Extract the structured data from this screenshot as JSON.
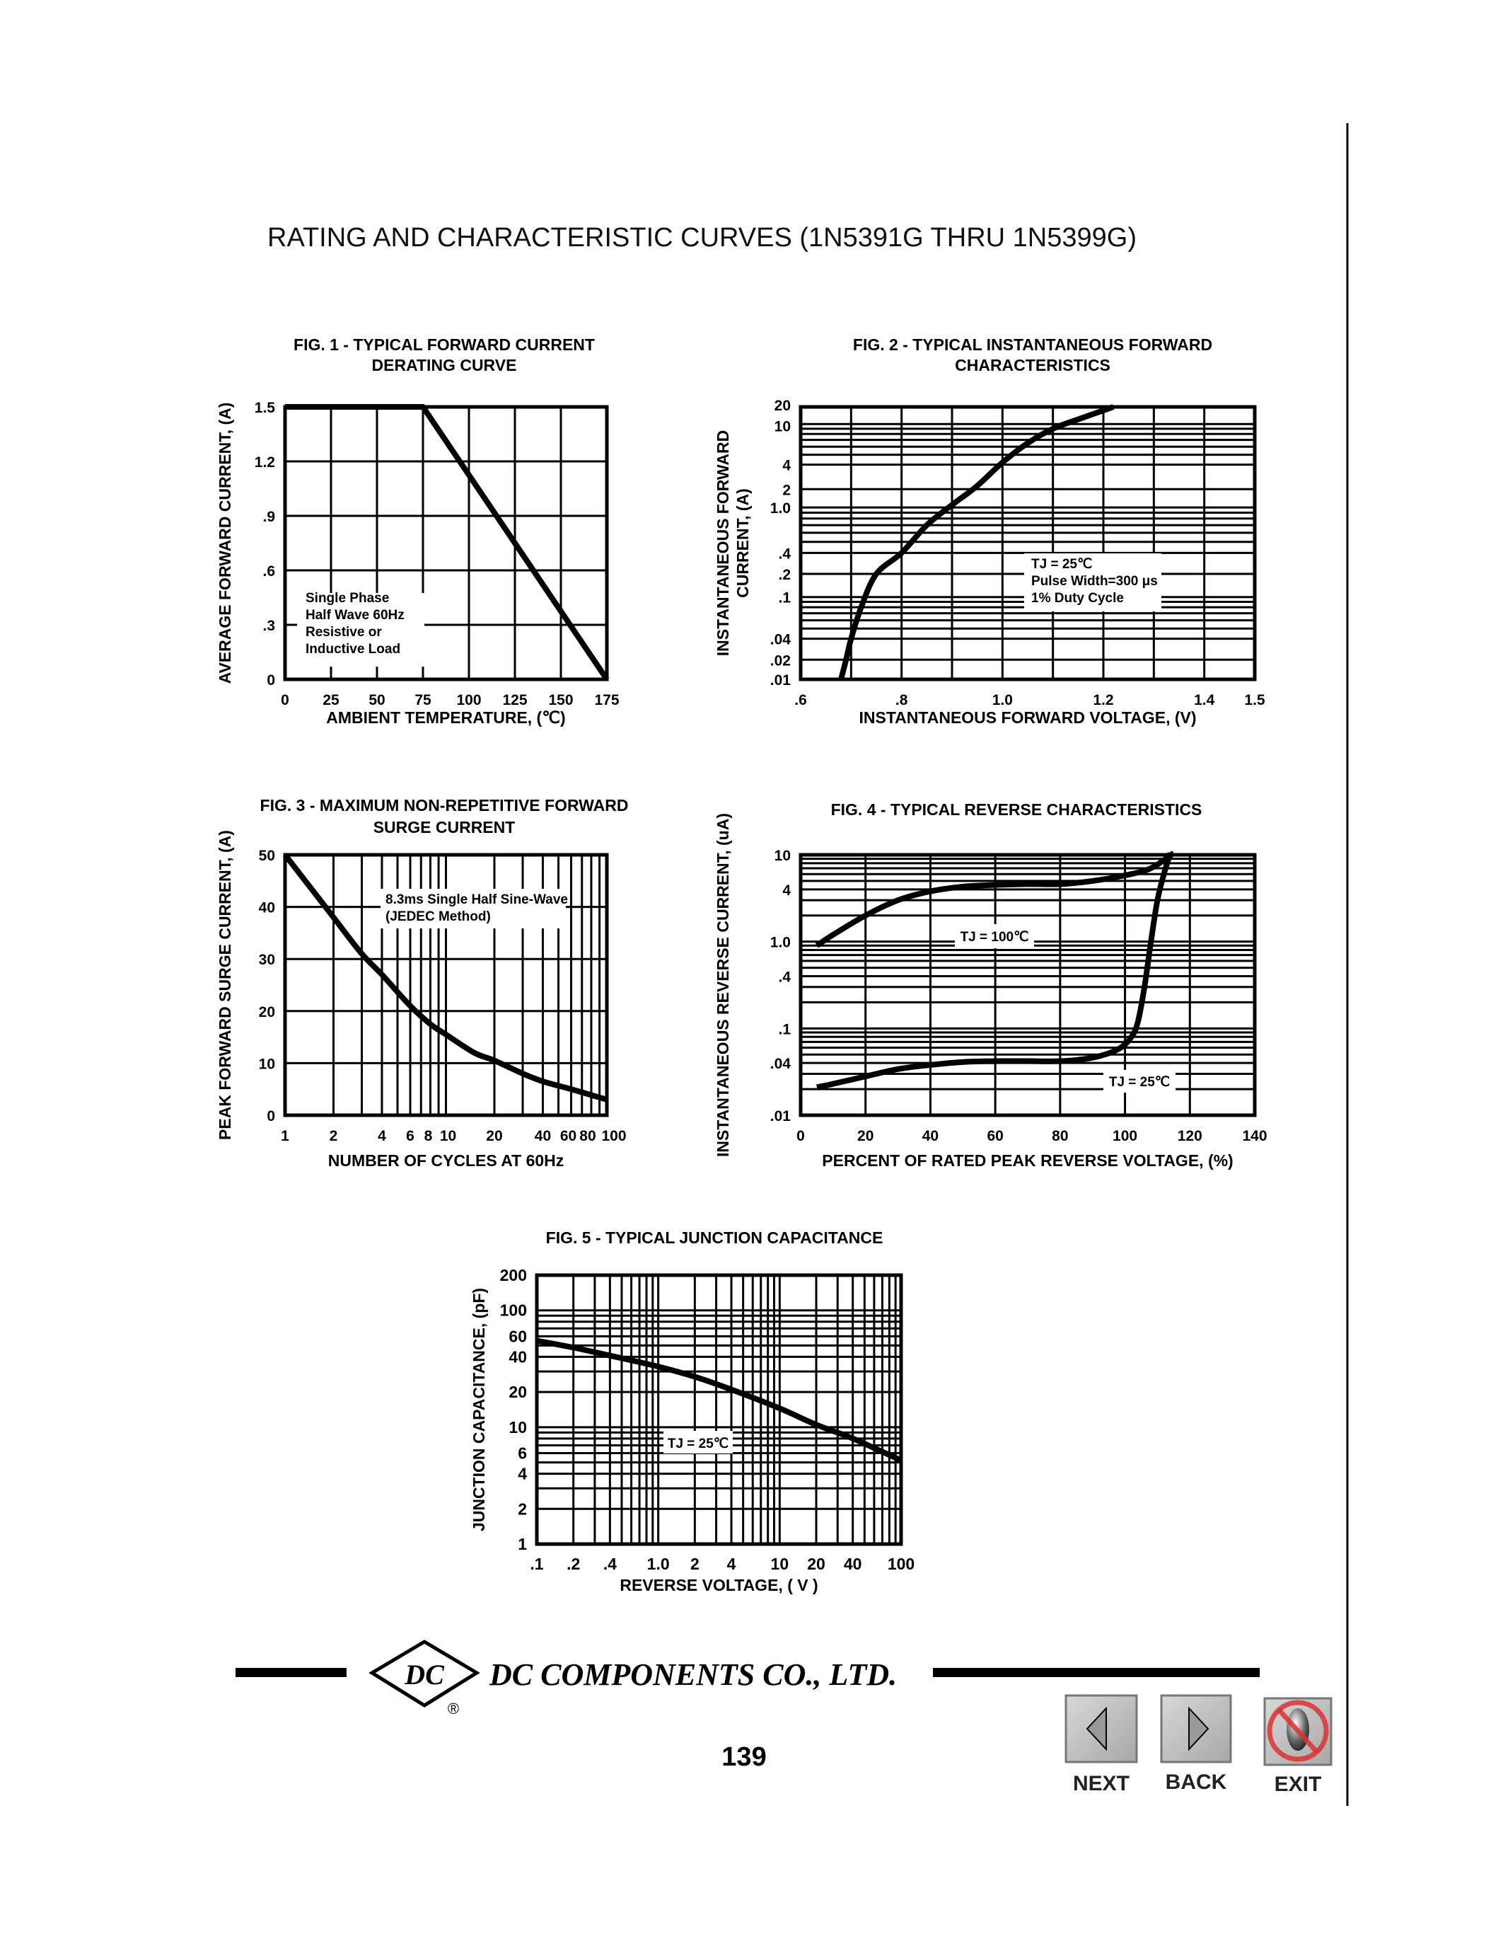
{
  "page": {
    "heading": "RATING AND CHARACTERISTIC CURVES (1N5391G THRU 1N5399G)",
    "page_number": "139"
  },
  "footer": {
    "company": "DC COMPONENTS CO.,  LTD.",
    "logo_text": "DC",
    "registered": "®"
  },
  "nav": {
    "next": "NEXT",
    "back": "BACK",
    "exit": "EXIT",
    "next_icon": "left-triangle-icon",
    "back_icon": "right-triangle-icon",
    "exit_icon": "prohibited-icon"
  },
  "chart_data": [
    {
      "type": "line",
      "title": [
        "FIG. 1 - TYPICAL FORWARD CURRENT",
        "DERATING CURVE"
      ],
      "xlabel": "AMBIENT TEMPERATURE, (℃)",
      "ylabel": "AVERAGE FORWARD  CURRENT, (A)",
      "x_scale": "linear",
      "y_scale": "linear",
      "xlim": [
        0,
        175
      ],
      "ylim": [
        0,
        1.5
      ],
      "xticks": [
        "0",
        "25",
        "50",
        "75",
        "100",
        "125",
        "150",
        "175"
      ],
      "yticks": [
        "0",
        ".3",
        ".6",
        ".9",
        "1.2",
        "1.5"
      ],
      "grid": true,
      "annotations": [
        [
          "Single Phase",
          "Half Wave 60Hz",
          "Resistive or",
          "Inductive Load"
        ]
      ],
      "series": [
        {
          "x": [
            0,
            75,
            175
          ],
          "y": [
            1.5,
            1.5,
            0
          ]
        }
      ]
    },
    {
      "type": "line",
      "title": [
        "FIG. 2 - TYPICAL INSTANTANEOUS FORWARD",
        "CHARACTERISTICS"
      ],
      "xlabel": "INSTANTANEOUS FORWARD VOLTAGE, (V)",
      "ylabel": [
        "INSTANTANEOUS FORWARD",
        "CURRENT, (A)"
      ],
      "x_scale": "linear",
      "y_scale": "log",
      "xlim": [
        0.6,
        1.5
      ],
      "ylim": [
        0.01,
        20
      ],
      "xticks": [
        ".6",
        ".8",
        "1.0",
        "1.2",
        "1.4",
        "1.5"
      ],
      "yticks": [
        "20",
        "10",
        "4",
        "2",
        "1.0",
        ".4",
        ".2",
        ".1",
        ".04",
        ".02",
        ".01"
      ],
      "grid": true,
      "annotations": [
        [
          "TJ = 25℃",
          "Pulse Width=300 μs",
          "1% Duty Cycle"
        ]
      ],
      "series": [
        {
          "x": [
            0.68,
            0.69,
            0.7,
            0.72,
            0.75,
            0.8,
            0.85,
            0.9,
            0.95,
            1.0,
            1.05,
            1.1,
            1.16,
            1.22
          ],
          "y": [
            0.01,
            0.02,
            0.04,
            0.08,
            0.2,
            0.4,
            0.7,
            1.1,
            2.2,
            4.2,
            6.5,
            9,
            13,
            20
          ]
        }
      ]
    },
    {
      "type": "line",
      "title": [
        "FIG. 3 - MAXIMUM NON-REPETITIVE FORWARD",
        "SURGE CURRENT"
      ],
      "xlabel": "NUMBER OF CYCLES AT 60Hz",
      "ylabel": "PEAK FORWARD SURGE CURRENT, (A)",
      "x_scale": "log",
      "y_scale": "linear",
      "xlim": [
        1,
        100
      ],
      "ylim": [
        0,
        50
      ],
      "xticks": [
        "1",
        "2",
        "4",
        "6",
        "8",
        "10",
        "20",
        "40",
        "60",
        "80",
        "100"
      ],
      "yticks": [
        "0",
        "10",
        "20",
        "30",
        "40",
        "50"
      ],
      "grid": true,
      "annotations": [
        [
          "8.3ms Single Half Sine-Wave",
          "(JEDEC Method)"
        ]
      ],
      "series": [
        {
          "x": [
            1,
            1.5,
            2,
            3,
            4,
            6,
            8,
            10,
            15,
            20,
            30,
            40,
            60,
            100
          ],
          "y": [
            50,
            43,
            38,
            31,
            27,
            21,
            17.5,
            15.5,
            12,
            10.5,
            8,
            6.5,
            5,
            3
          ]
        }
      ]
    },
    {
      "type": "line",
      "title": [
        "FIG. 4 - TYPICAL REVERSE CHARACTERISTICS"
      ],
      "xlabel": "PERCENT OF RATED PEAK REVERSE VOLTAGE, (%)",
      "ylabel": "INSTANTANEOUS REVERSE CURRENT, (uA)",
      "x_scale": "linear",
      "y_scale": "log",
      "xlim": [
        0,
        140
      ],
      "ylim": [
        0.01,
        10
      ],
      "xticks": [
        "0",
        "20",
        "40",
        "60",
        "80",
        "100",
        "120",
        "140"
      ],
      "yticks": [
        "10",
        "4",
        "1.0",
        ".4",
        ".1",
        ".04",
        ".01"
      ],
      "grid": true,
      "annotations": [
        [
          "TJ = 100℃"
        ],
        [
          "TJ = 25℃"
        ]
      ],
      "series": [
        {
          "name": "TJ = 100℃",
          "x": [
            5,
            10,
            20,
            30,
            40,
            50,
            60,
            70,
            80,
            90,
            100,
            108,
            115
          ],
          "y": [
            0.9,
            1.2,
            2.0,
            3.0,
            3.8,
            4.3,
            4.5,
            4.6,
            4.6,
            5.0,
            5.8,
            7.0,
            10.5
          ]
        },
        {
          "name": "TJ = 25℃",
          "x": [
            5,
            10,
            20,
            30,
            40,
            50,
            60,
            70,
            80,
            90,
            98,
            102,
            104,
            106,
            108,
            110,
            112,
            114
          ],
          "y": [
            0.021,
            0.023,
            0.028,
            0.034,
            0.038,
            0.041,
            0.042,
            0.042,
            0.042,
            0.046,
            0.058,
            0.08,
            0.12,
            0.3,
            1.0,
            3.0,
            6.0,
            10.5
          ]
        }
      ]
    },
    {
      "type": "line",
      "title": [
        "FIG. 5 - TYPICAL JUNCTION CAPACITANCE"
      ],
      "xlabel": "REVERSE VOLTAGE, ( V )",
      "ylabel": "JUNCTION CAPACITANCE, (pF)",
      "x_scale": "log",
      "y_scale": "log",
      "xlim": [
        0.1,
        100
      ],
      "ylim": [
        1,
        200
      ],
      "xticks": [
        ".1",
        ".2",
        ".4",
        "1.0",
        "2",
        "4",
        "10",
        "20",
        "40",
        "100"
      ],
      "yticks": [
        "200",
        "100",
        "60",
        "40",
        "20",
        "10",
        "6",
        "4",
        "2",
        "1"
      ],
      "grid": true,
      "annotations": [
        [
          "TJ = 25℃"
        ]
      ],
      "series": [
        {
          "x": [
            0.1,
            0.2,
            0.4,
            1,
            2,
            4,
            10,
            20,
            40,
            100
          ],
          "y": [
            55,
            48,
            41,
            33,
            27,
            21,
            14.5,
            10.5,
            8,
            5.2
          ]
        }
      ]
    }
  ]
}
